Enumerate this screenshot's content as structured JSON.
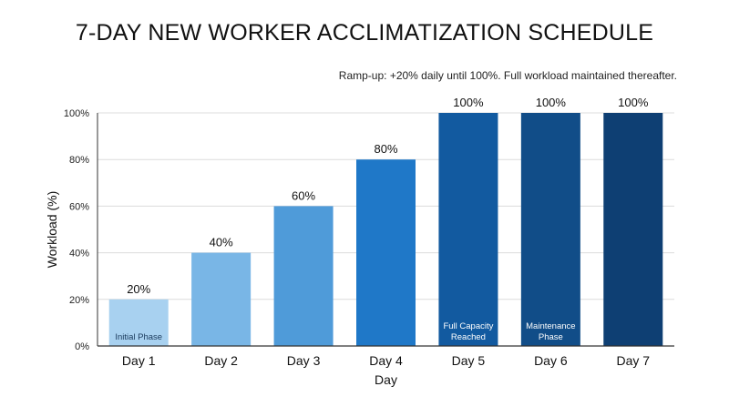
{
  "chart_data": {
    "type": "bar",
    "title": "7-DAY NEW WORKER ACCLIMATIZATION SCHEDULE",
    "subtitle": "Ramp-up: +20% daily until 100%. Full workload maintained thereafter.",
    "xlabel": "Day",
    "ylabel": "Workload (%)",
    "categories": [
      "Day 1",
      "Day 2",
      "Day 3",
      "Day 4",
      "Day 5",
      "Day 6",
      "Day 7"
    ],
    "values": [
      20,
      40,
      60,
      80,
      100,
      100,
      100
    ],
    "value_labels": [
      "20%",
      "40%",
      "60%",
      "80%",
      "100%",
      "100%",
      "100%"
    ],
    "ylim": [
      0,
      100
    ],
    "yticks": [
      0,
      20,
      40,
      60,
      80,
      100
    ],
    "ytick_labels": [
      "0%",
      "20%",
      "40%",
      "60%",
      "80%",
      "100%"
    ],
    "grid": true,
    "bar_colors": [
      "#a8d1f0",
      "#79b6e6",
      "#4f9bd9",
      "#1f78c8",
      "#125aa0",
      "#114d88",
      "#0e3f73"
    ],
    "annotations": [
      {
        "category_index": 0,
        "lines": [
          "Initial Phase"
        ],
        "color": "#1a3a5c"
      },
      {
        "category_index": 4,
        "lines": [
          "Full Capacity",
          "Reached"
        ],
        "color": "#ffffff"
      },
      {
        "category_index": 5,
        "lines": [
          "Maintenance",
          "Phase"
        ],
        "color": "#ffffff"
      }
    ]
  }
}
